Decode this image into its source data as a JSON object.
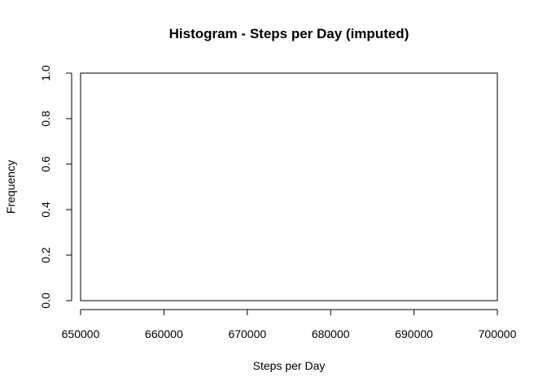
{
  "chart_data": {
    "type": "bar",
    "title": "Histogram - Steps per Day (imputed)",
    "xlabel": "Steps per Day",
    "ylabel": "Frequency",
    "xlim": [
      650000,
      700000
    ],
    "ylim": [
      0,
      1
    ],
    "x_ticks": [
      650000,
      660000,
      670000,
      680000,
      690000,
      700000
    ],
    "x_tick_labels": [
      "650000",
      "660000",
      "670000",
      "680000",
      "690000",
      "700000"
    ],
    "y_ticks": [
      0,
      0.2,
      0.4,
      0.6,
      0.8,
      1
    ],
    "y_tick_labels": [
      "0.0",
      "0.2",
      "0.4",
      "0.6",
      "0.8",
      "1.0"
    ],
    "values": [],
    "grid": false,
    "legend": "none"
  }
}
